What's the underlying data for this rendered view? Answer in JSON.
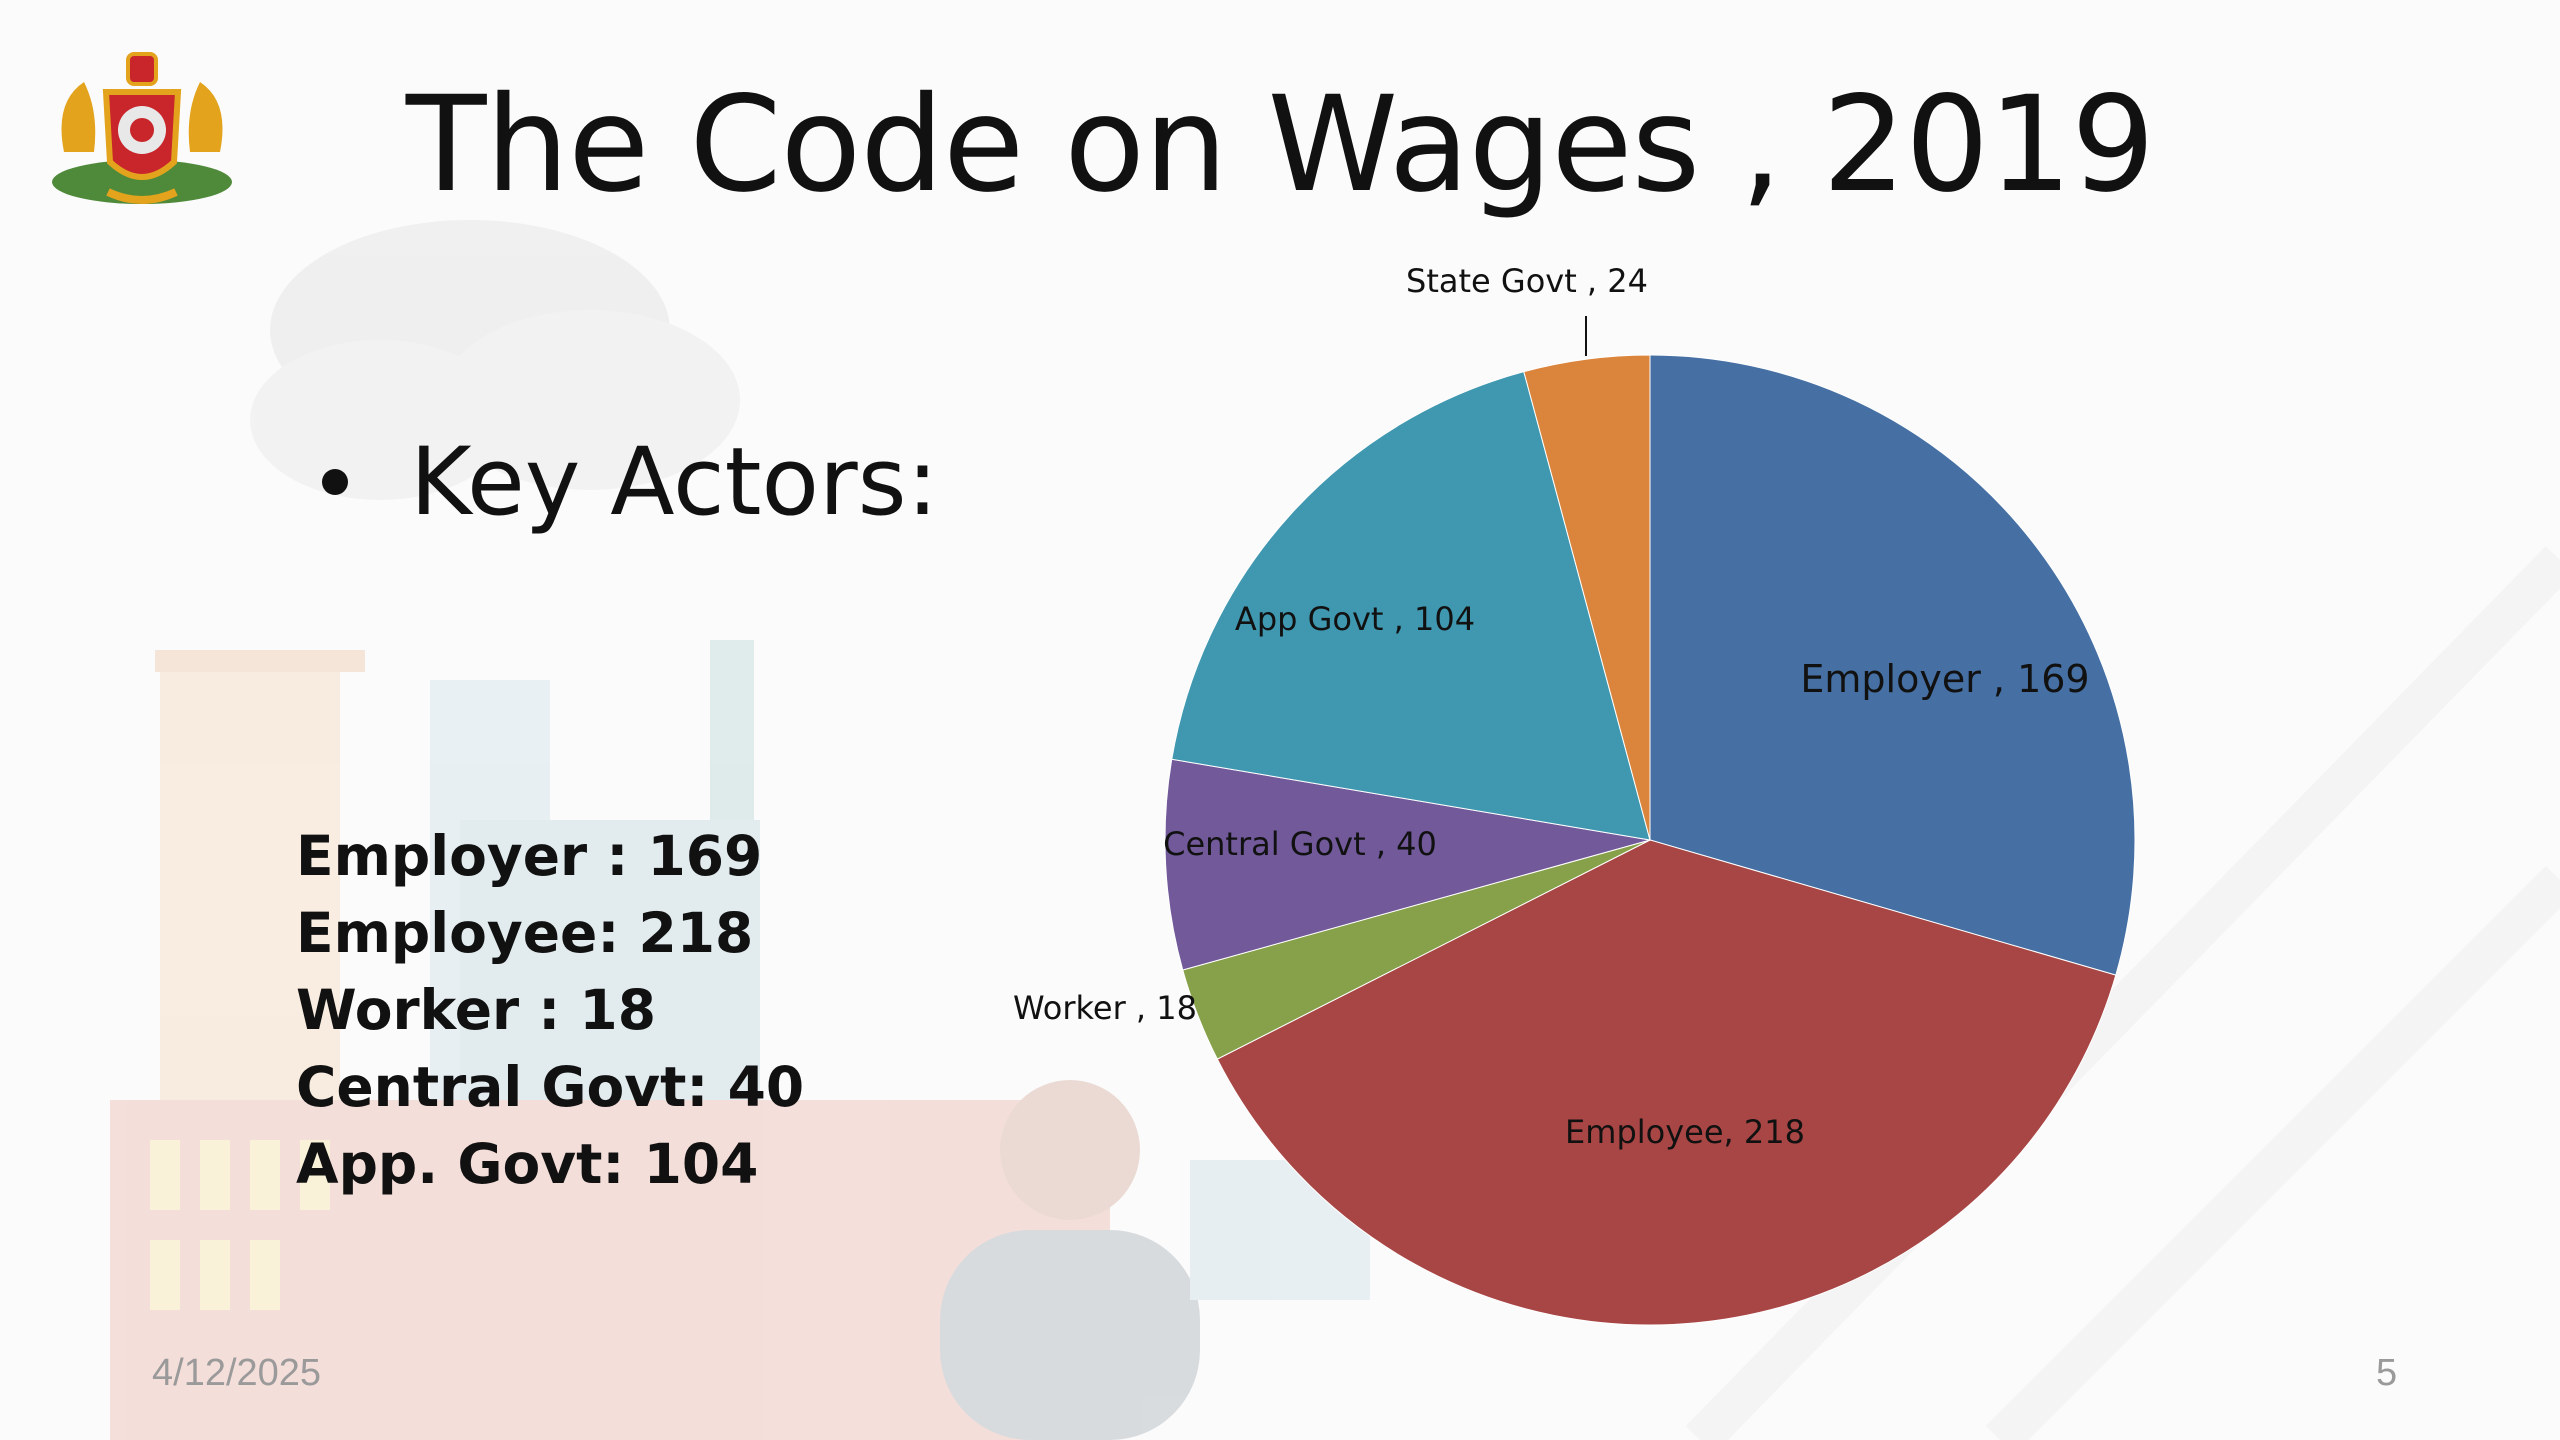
{
  "slide": {
    "title": "The Code on Wages , 2019",
    "bullet": "Key Actors:",
    "counts": [
      "Employer : 169",
      "Employee: 218",
      "Worker : 18",
      "Central Govt: 40",
      "App. Govt: 104"
    ],
    "footer_date": "4/12/2025",
    "slide_number": "5"
  },
  "chart_data": {
    "type": "pie",
    "start": "12 o'clock",
    "direction": "clockwise",
    "slices": [
      {
        "name": "Employer",
        "value": 169,
        "label": "Employer , 169",
        "color": "#4670a4"
      },
      {
        "name": "Employee",
        "value": 218,
        "label": "Employee, 218",
        "color": "#a74644"
      },
      {
        "name": "Worker",
        "value": 18,
        "label": "Worker , 18",
        "color": "#87a14a"
      },
      {
        "name": "Central Govt",
        "value": 40,
        "label": "Central Govt , 40",
        "color": "#71599a"
      },
      {
        "name": "App Govt",
        "value": 104,
        "label": "App Govt , 104",
        "color": "#4097b0"
      },
      {
        "name": "State Govt",
        "value": 24,
        "label": "State Govt , 24",
        "color": "#da843c"
      }
    ]
  }
}
